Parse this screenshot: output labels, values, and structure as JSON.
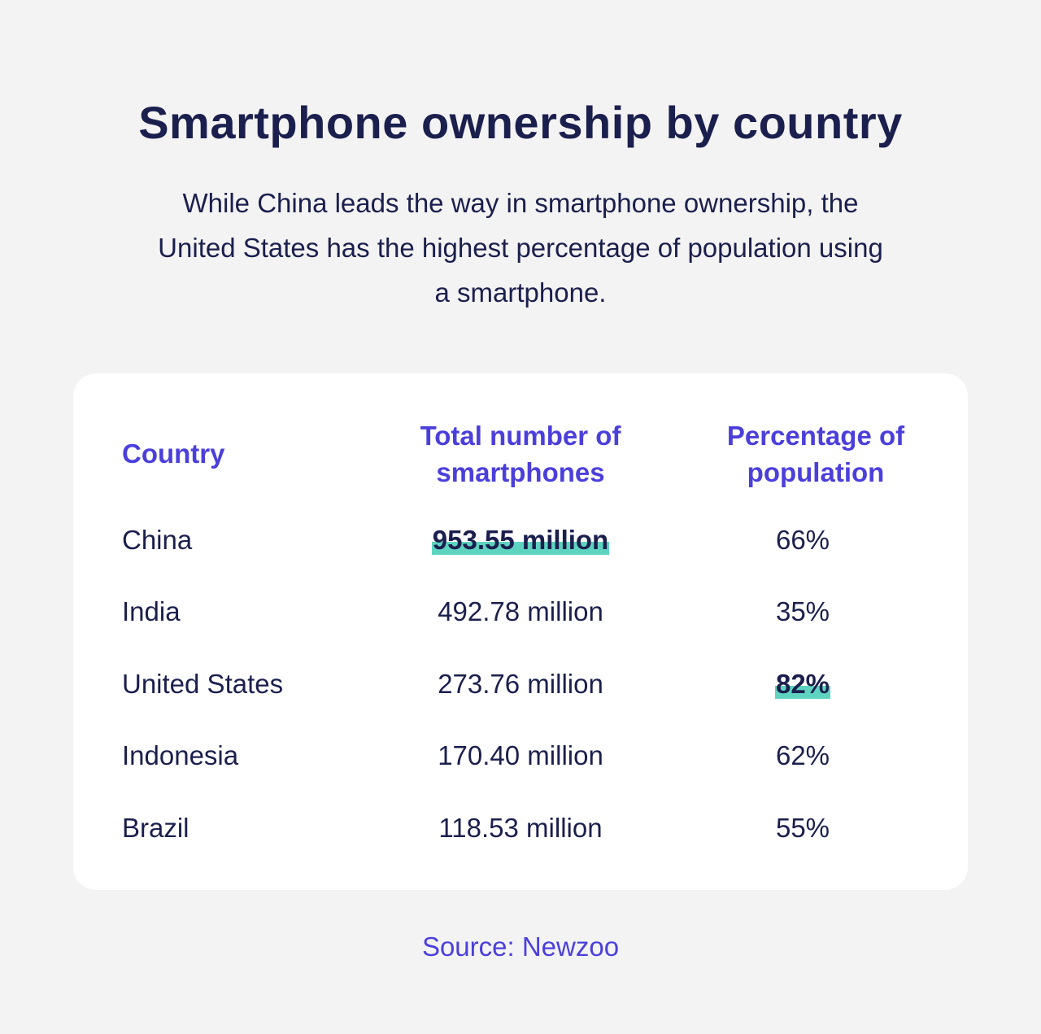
{
  "title": "Smartphone ownership by country",
  "subtitle": "While China leads the way in smartphone ownership, the United States has the highest percentage of population using a smartphone.",
  "source": "Source: Newzoo",
  "colors": {
    "background": "#f3f3f3",
    "card": "#ffffff",
    "accent": "#4b3fdc",
    "text": "#1b1f4d",
    "highlight": "#5dd3c0"
  },
  "chart_data": {
    "type": "table",
    "columns": [
      "Country",
      "Total number of smartphones",
      "Percentage of population"
    ],
    "rows": [
      {
        "country": "China",
        "total": "953.55 million",
        "percentage": "66%",
        "highlight": "total"
      },
      {
        "country": "India",
        "total": "492.78 million",
        "percentage": "35%",
        "highlight": ""
      },
      {
        "country": "United States",
        "total": "273.76 million",
        "percentage": "82%",
        "highlight": "percentage"
      },
      {
        "country": "Indonesia",
        "total": "170.40 million",
        "percentage": "62%",
        "highlight": ""
      },
      {
        "country": "Brazil",
        "total": "118.53 million",
        "percentage": "55%",
        "highlight": ""
      }
    ]
  }
}
